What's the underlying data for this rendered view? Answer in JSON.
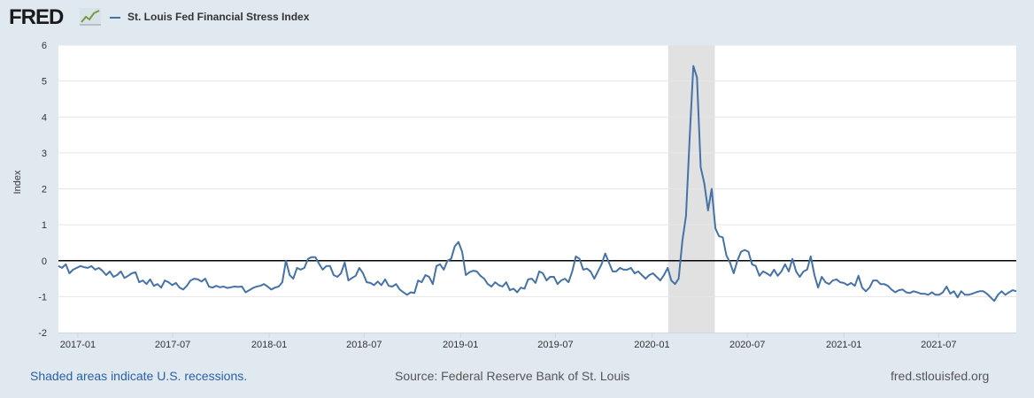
{
  "header": {
    "logo_text": "FRED",
    "logo_icon": "line-chart-icon"
  },
  "colors": {
    "background": "#e1e9f0",
    "plot_background": "#ffffff",
    "series": "#4572a7",
    "recession_shade": "#e1e1e1",
    "zero_line": "#000000",
    "footer_link": "#2a5fa8"
  },
  "footer": {
    "recession_note": "Shaded areas indicate U.S. recessions.",
    "source": "Source: Federal Reserve Bank of St. Louis",
    "site": "fred.stlouisfed.org"
  },
  "chart_data": {
    "type": "line",
    "title": "",
    "xlabel": "",
    "ylabel": "Index",
    "ylim": [
      -2,
      6
    ],
    "yticks": [
      "6",
      "5",
      "4",
      "3",
      "2",
      "1",
      "0",
      "-1",
      "-2"
    ],
    "xlim": [
      "2016-11-25",
      "2021-11-26"
    ],
    "xticks": [
      "2017-01",
      "2017-07",
      "2018-01",
      "2018-07",
      "2019-01",
      "2019-07",
      "2020-01",
      "2020-07",
      "2021-01",
      "2021-07"
    ],
    "grid": "horizontal",
    "legend_position": "top-left",
    "recessions": [
      {
        "start": "2020-02-01",
        "end": "2020-04-30"
      }
    ],
    "reference_line": 0,
    "series": [
      {
        "name": "St. Louis Fed Financial Stress Index",
        "points": [
          [
            "2016-11-25",
            -0.15
          ],
          [
            "2016-12-02",
            -0.2
          ],
          [
            "2016-12-09",
            -0.1
          ],
          [
            "2016-12-16",
            -0.35
          ],
          [
            "2016-12-23",
            -0.25
          ],
          [
            "2016-12-30",
            -0.2
          ],
          [
            "2017-01-06",
            -0.15
          ],
          [
            "2017-01-13",
            -0.18
          ],
          [
            "2017-01-20",
            -0.2
          ],
          [
            "2017-01-27",
            -0.15
          ],
          [
            "2017-02-03",
            -0.25
          ],
          [
            "2017-02-10",
            -0.2
          ],
          [
            "2017-02-17",
            -0.28
          ],
          [
            "2017-02-24",
            -0.4
          ],
          [
            "2017-03-03",
            -0.3
          ],
          [
            "2017-03-10",
            -0.45
          ],
          [
            "2017-03-17",
            -0.4
          ],
          [
            "2017-03-24",
            -0.3
          ],
          [
            "2017-03-31",
            -0.48
          ],
          [
            "2017-04-07",
            -0.42
          ],
          [
            "2017-04-14",
            -0.35
          ],
          [
            "2017-04-21",
            -0.32
          ],
          [
            "2017-04-28",
            -0.6
          ],
          [
            "2017-05-05",
            -0.55
          ],
          [
            "2017-05-12",
            -0.65
          ],
          [
            "2017-05-19",
            -0.52
          ],
          [
            "2017-05-26",
            -0.7
          ],
          [
            "2017-06-02",
            -0.65
          ],
          [
            "2017-06-09",
            -0.75
          ],
          [
            "2017-06-16",
            -0.55
          ],
          [
            "2017-06-23",
            -0.6
          ],
          [
            "2017-06-30",
            -0.68
          ],
          [
            "2017-07-07",
            -0.62
          ],
          [
            "2017-07-14",
            -0.75
          ],
          [
            "2017-07-21",
            -0.8
          ],
          [
            "2017-07-28",
            -0.7
          ],
          [
            "2017-08-04",
            -0.55
          ],
          [
            "2017-08-11",
            -0.5
          ],
          [
            "2017-08-18",
            -0.52
          ],
          [
            "2017-08-25",
            -0.58
          ],
          [
            "2017-09-01",
            -0.5
          ],
          [
            "2017-09-08",
            -0.72
          ],
          [
            "2017-09-15",
            -0.75
          ],
          [
            "2017-09-22",
            -0.7
          ],
          [
            "2017-09-29",
            -0.74
          ],
          [
            "2017-10-06",
            -0.72
          ],
          [
            "2017-10-13",
            -0.76
          ],
          [
            "2017-10-20",
            -0.74
          ],
          [
            "2017-10-27",
            -0.72
          ],
          [
            "2017-11-03",
            -0.73
          ],
          [
            "2017-11-10",
            -0.72
          ],
          [
            "2017-11-17",
            -0.88
          ],
          [
            "2017-11-24",
            -0.82
          ],
          [
            "2017-12-01",
            -0.76
          ],
          [
            "2017-12-08",
            -0.72
          ],
          [
            "2017-12-15",
            -0.7
          ],
          [
            "2017-12-22",
            -0.65
          ],
          [
            "2017-12-29",
            -0.72
          ],
          [
            "2018-01-05",
            -0.8
          ],
          [
            "2018-01-12",
            -0.75
          ],
          [
            "2018-01-19",
            -0.72
          ],
          [
            "2018-01-26",
            -0.6
          ],
          [
            "2018-02-02",
            0.0
          ],
          [
            "2018-02-09",
            -0.4
          ],
          [
            "2018-02-16",
            -0.5
          ],
          [
            "2018-02-23",
            -0.2
          ],
          [
            "2018-03-02",
            -0.25
          ],
          [
            "2018-03-09",
            -0.2
          ],
          [
            "2018-03-16",
            0.05
          ],
          [
            "2018-03-23",
            0.1
          ],
          [
            "2018-03-30",
            0.1
          ],
          [
            "2018-04-06",
            -0.08
          ],
          [
            "2018-04-13",
            -0.25
          ],
          [
            "2018-04-20",
            -0.15
          ],
          [
            "2018-04-27",
            -0.15
          ],
          [
            "2018-05-04",
            -0.4
          ],
          [
            "2018-05-11",
            -0.45
          ],
          [
            "2018-05-18",
            -0.35
          ],
          [
            "2018-05-25",
            -0.05
          ],
          [
            "2018-06-01",
            -0.55
          ],
          [
            "2018-06-08",
            -0.48
          ],
          [
            "2018-06-15",
            -0.42
          ],
          [
            "2018-06-22",
            -0.2
          ],
          [
            "2018-06-29",
            -0.35
          ],
          [
            "2018-07-06",
            -0.6
          ],
          [
            "2018-07-13",
            -0.62
          ],
          [
            "2018-07-20",
            -0.68
          ],
          [
            "2018-07-27",
            -0.58
          ],
          [
            "2018-08-03",
            -0.68
          ],
          [
            "2018-08-10",
            -0.52
          ],
          [
            "2018-08-17",
            -0.7
          ],
          [
            "2018-08-24",
            -0.72
          ],
          [
            "2018-08-31",
            -0.65
          ],
          [
            "2018-09-07",
            -0.8
          ],
          [
            "2018-09-14",
            -0.88
          ],
          [
            "2018-09-21",
            -0.95
          ],
          [
            "2018-09-28",
            -0.88
          ],
          [
            "2018-10-05",
            -0.9
          ],
          [
            "2018-10-12",
            -0.55
          ],
          [
            "2018-10-19",
            -0.6
          ],
          [
            "2018-10-26",
            -0.4
          ],
          [
            "2018-11-02",
            -0.45
          ],
          [
            "2018-11-09",
            -0.65
          ],
          [
            "2018-11-16",
            -0.15
          ],
          [
            "2018-11-23",
            -0.1
          ],
          [
            "2018-11-30",
            -0.25
          ],
          [
            "2018-12-07",
            0.0
          ],
          [
            "2018-12-14",
            0.05
          ],
          [
            "2018-12-21",
            0.4
          ],
          [
            "2018-12-28",
            0.52
          ],
          [
            "2019-01-04",
            0.25
          ],
          [
            "2019-01-11",
            -0.4
          ],
          [
            "2019-01-18",
            -0.32
          ],
          [
            "2019-01-25",
            -0.28
          ],
          [
            "2019-02-01",
            -0.3
          ],
          [
            "2019-02-08",
            -0.42
          ],
          [
            "2019-02-15",
            -0.5
          ],
          [
            "2019-02-22",
            -0.65
          ],
          [
            "2019-03-01",
            -0.72
          ],
          [
            "2019-03-08",
            -0.6
          ],
          [
            "2019-03-15",
            -0.68
          ],
          [
            "2019-03-22",
            -0.72
          ],
          [
            "2019-03-29",
            -0.6
          ],
          [
            "2019-04-05",
            -0.82
          ],
          [
            "2019-04-12",
            -0.78
          ],
          [
            "2019-04-19",
            -0.88
          ],
          [
            "2019-04-26",
            -0.75
          ],
          [
            "2019-05-03",
            -0.78
          ],
          [
            "2019-05-10",
            -0.52
          ],
          [
            "2019-05-17",
            -0.5
          ],
          [
            "2019-05-24",
            -0.62
          ],
          [
            "2019-05-31",
            -0.3
          ],
          [
            "2019-06-07",
            -0.35
          ],
          [
            "2019-06-14",
            -0.55
          ],
          [
            "2019-06-21",
            -0.45
          ],
          [
            "2019-06-28",
            -0.45
          ],
          [
            "2019-07-05",
            -0.65
          ],
          [
            "2019-07-12",
            -0.55
          ],
          [
            "2019-07-19",
            -0.5
          ],
          [
            "2019-07-26",
            -0.6
          ],
          [
            "2019-08-02",
            -0.3
          ],
          [
            "2019-08-09",
            0.12
          ],
          [
            "2019-08-16",
            0.05
          ],
          [
            "2019-08-23",
            -0.25
          ],
          [
            "2019-08-30",
            -0.22
          ],
          [
            "2019-09-06",
            -0.3
          ],
          [
            "2019-09-13",
            -0.5
          ],
          [
            "2019-09-20",
            -0.3
          ],
          [
            "2019-09-27",
            -0.1
          ],
          [
            "2019-10-04",
            0.2
          ],
          [
            "2019-10-11",
            -0.05
          ],
          [
            "2019-10-18",
            -0.3
          ],
          [
            "2019-10-25",
            -0.3
          ],
          [
            "2019-11-01",
            -0.2
          ],
          [
            "2019-11-08",
            -0.25
          ],
          [
            "2019-11-15",
            -0.25
          ],
          [
            "2019-11-22",
            -0.2
          ],
          [
            "2019-11-29",
            -0.35
          ],
          [
            "2019-12-06",
            -0.3
          ],
          [
            "2019-12-13",
            -0.4
          ],
          [
            "2019-12-20",
            -0.5
          ],
          [
            "2019-12-27",
            -0.4
          ],
          [
            "2020-01-03",
            -0.35
          ],
          [
            "2020-01-10",
            -0.45
          ],
          [
            "2020-01-17",
            -0.55
          ],
          [
            "2020-01-24",
            -0.4
          ],
          [
            "2020-01-31",
            -0.2
          ],
          [
            "2020-02-07",
            -0.55
          ],
          [
            "2020-02-14",
            -0.65
          ],
          [
            "2020-02-21",
            -0.5
          ],
          [
            "2020-02-28",
            0.55
          ],
          [
            "2020-03-06",
            1.25
          ],
          [
            "2020-03-13",
            3.4
          ],
          [
            "2020-03-20",
            5.42
          ],
          [
            "2020-03-27",
            5.1
          ],
          [
            "2020-04-03",
            2.6
          ],
          [
            "2020-04-10",
            2.15
          ],
          [
            "2020-04-17",
            1.4
          ],
          [
            "2020-04-24",
            2.0
          ],
          [
            "2020-05-01",
            0.9
          ],
          [
            "2020-05-08",
            0.68
          ],
          [
            "2020-05-15",
            0.65
          ],
          [
            "2020-05-22",
            0.15
          ],
          [
            "2020-05-29",
            -0.05
          ],
          [
            "2020-06-05",
            -0.35
          ],
          [
            "2020-06-12",
            0.0
          ],
          [
            "2020-06-19",
            0.25
          ],
          [
            "2020-06-26",
            0.3
          ],
          [
            "2020-07-03",
            0.25
          ],
          [
            "2020-07-10",
            -0.1
          ],
          [
            "2020-07-17",
            -0.15
          ],
          [
            "2020-07-24",
            -0.42
          ],
          [
            "2020-07-31",
            -0.3
          ],
          [
            "2020-08-07",
            -0.35
          ],
          [
            "2020-08-14",
            -0.42
          ],
          [
            "2020-08-21",
            -0.25
          ],
          [
            "2020-08-28",
            -0.42
          ],
          [
            "2020-09-04",
            -0.3
          ],
          [
            "2020-09-11",
            -0.1
          ],
          [
            "2020-09-18",
            -0.3
          ],
          [
            "2020-09-25",
            0.05
          ],
          [
            "2020-10-02",
            -0.3
          ],
          [
            "2020-10-09",
            -0.45
          ],
          [
            "2020-10-16",
            -0.3
          ],
          [
            "2020-10-23",
            -0.25
          ],
          [
            "2020-10-30",
            0.12
          ],
          [
            "2020-11-06",
            -0.4
          ],
          [
            "2020-11-13",
            -0.75
          ],
          [
            "2020-11-20",
            -0.45
          ],
          [
            "2020-11-27",
            -0.6
          ],
          [
            "2020-12-04",
            -0.65
          ],
          [
            "2020-12-11",
            -0.55
          ],
          [
            "2020-12-18",
            -0.52
          ],
          [
            "2020-12-25",
            -0.6
          ],
          [
            "2021-01-01",
            -0.62
          ],
          [
            "2021-01-08",
            -0.68
          ],
          [
            "2021-01-15",
            -0.62
          ],
          [
            "2021-01-22",
            -0.7
          ],
          [
            "2021-01-29",
            -0.42
          ],
          [
            "2021-02-05",
            -0.75
          ],
          [
            "2021-02-12",
            -0.85
          ],
          [
            "2021-02-19",
            -0.75
          ],
          [
            "2021-02-26",
            -0.55
          ],
          [
            "2021-03-05",
            -0.55
          ],
          [
            "2021-03-12",
            -0.65
          ],
          [
            "2021-03-19",
            -0.65
          ],
          [
            "2021-03-26",
            -0.7
          ],
          [
            "2021-04-02",
            -0.8
          ],
          [
            "2021-04-09",
            -0.88
          ],
          [
            "2021-04-16",
            -0.82
          ],
          [
            "2021-04-23",
            -0.8
          ],
          [
            "2021-04-30",
            -0.88
          ],
          [
            "2021-05-07",
            -0.9
          ],
          [
            "2021-05-14",
            -0.85
          ],
          [
            "2021-05-21",
            -0.88
          ],
          [
            "2021-05-28",
            -0.92
          ],
          [
            "2021-06-04",
            -0.92
          ],
          [
            "2021-06-11",
            -0.95
          ],
          [
            "2021-06-18",
            -0.88
          ],
          [
            "2021-06-25",
            -0.95
          ],
          [
            "2021-07-02",
            -0.95
          ],
          [
            "2021-07-09",
            -0.88
          ],
          [
            "2021-07-16",
            -0.72
          ],
          [
            "2021-07-23",
            -0.92
          ],
          [
            "2021-07-30",
            -0.85
          ],
          [
            "2021-08-06",
            -1.02
          ],
          [
            "2021-08-13",
            -0.85
          ],
          [
            "2021-08-20",
            -0.95
          ],
          [
            "2021-08-27",
            -0.95
          ],
          [
            "2021-09-03",
            -0.92
          ],
          [
            "2021-09-10",
            -0.88
          ],
          [
            "2021-09-17",
            -0.85
          ],
          [
            "2021-09-24",
            -0.85
          ],
          [
            "2021-10-01",
            -0.92
          ],
          [
            "2021-10-08",
            -1.02
          ],
          [
            "2021-10-15",
            -1.12
          ],
          [
            "2021-10-22",
            -0.95
          ],
          [
            "2021-10-29",
            -0.85
          ],
          [
            "2021-11-05",
            -0.95
          ],
          [
            "2021-11-12",
            -0.88
          ],
          [
            "2021-11-19",
            -0.82
          ],
          [
            "2021-11-26",
            -0.85
          ]
        ]
      }
    ]
  }
}
